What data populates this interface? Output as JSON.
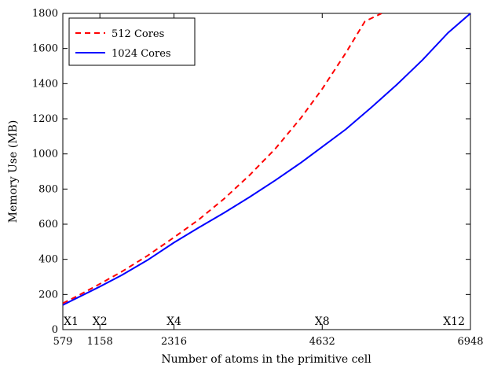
{
  "chart_data": {
    "type": "line",
    "xlabel": "Number of atoms in the primitive cell",
    "ylabel": "Memory Use (MB)",
    "xlim": [
      579,
      6948
    ],
    "ylim": [
      0,
      1800
    ],
    "xticks": [
      579,
      1158,
      2316,
      4632,
      6948
    ],
    "yticks": [
      0,
      200,
      400,
      600,
      800,
      1000,
      1200,
      1400,
      1600,
      1800
    ],
    "grid": false,
    "legend_position": "top-left",
    "annotations": [
      {
        "text": "X1",
        "x": 579
      },
      {
        "text": "X2",
        "x": 1158
      },
      {
        "text": "X4",
        "x": 2316
      },
      {
        "text": "X8",
        "x": 4632
      },
      {
        "text": "X12",
        "x": 6948
      }
    ],
    "series": [
      {
        "name": "512 Cores",
        "color": "#ff0000",
        "style": "dashed",
        "x": [
          579,
          800,
          1158,
          1500,
          1900,
          2316,
          2700,
          3100,
          3500,
          3900,
          4300,
          4632,
          5000,
          5300,
          5560
        ],
        "y": [
          150,
          190,
          260,
          330,
          420,
          525,
          625,
          745,
          880,
          1030,
          1205,
          1370,
          1575,
          1755,
          1800
        ]
      },
      {
        "name": "1024 Cores",
        "color": "#0000ff",
        "style": "solid",
        "x": [
          579,
          800,
          1158,
          1500,
          1900,
          2316,
          2700,
          3100,
          3500,
          3900,
          4300,
          4632,
          5000,
          5400,
          5800,
          6200,
          6600,
          6948
        ],
        "y": [
          140,
          180,
          245,
          310,
          395,
          495,
          580,
          665,
          755,
          850,
          950,
          1040,
          1140,
          1265,
          1395,
          1535,
          1690,
          1800
        ]
      }
    ]
  }
}
